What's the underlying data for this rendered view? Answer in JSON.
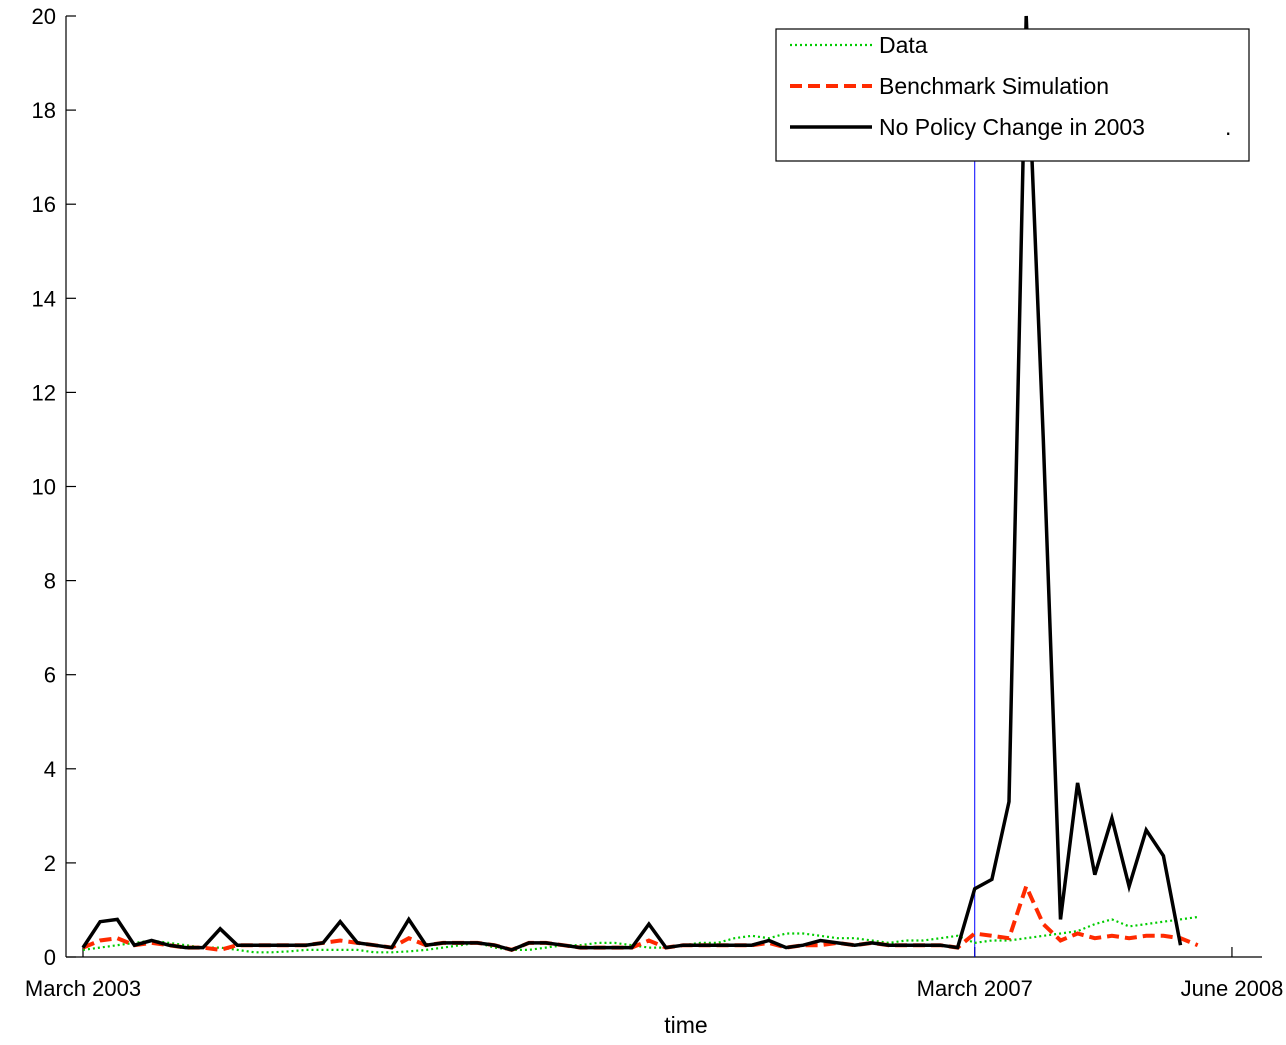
{
  "chart_data": {
    "type": "line",
    "title": "",
    "xlabel": "time",
    "ylabel": "",
    "ylim": [
      0,
      20
    ],
    "yticks": [
      0,
      2,
      4,
      6,
      8,
      10,
      12,
      14,
      16,
      18,
      20
    ],
    "xlim": [
      0,
      68
    ],
    "xticks": [
      {
        "x": 0,
        "label": "March 2003"
      },
      {
        "x": 52,
        "label": "March 2007"
      },
      {
        "x": 67,
        "label": "June 2008"
      }
    ],
    "vertical_line": {
      "x": 52,
      "color": "#0000ff"
    },
    "grid": false,
    "legend": {
      "placement": "top-right",
      "trailing_mark": "."
    },
    "series": [
      {
        "name": "Data",
        "color": "#00cc00",
        "style": "dotted",
        "values": [
          0.15,
          0.2,
          0.25,
          0.3,
          0.35,
          0.3,
          0.25,
          0.2,
          0.2,
          0.15,
          0.1,
          0.1,
          0.12,
          0.15,
          0.15,
          0.15,
          0.15,
          0.1,
          0.1,
          0.12,
          0.15,
          0.2,
          0.25,
          0.3,
          0.2,
          0.15,
          0.15,
          0.2,
          0.25,
          0.25,
          0.3,
          0.3,
          0.25,
          0.2,
          0.2,
          0.25,
          0.3,
          0.3,
          0.4,
          0.45,
          0.4,
          0.5,
          0.5,
          0.45,
          0.4,
          0.4,
          0.35,
          0.3,
          0.35,
          0.35,
          0.4,
          0.45,
          0.3,
          0.35,
          0.35,
          0.4,
          0.45,
          0.5,
          0.55,
          0.7,
          0.8,
          0.65,
          0.7,
          0.75,
          0.8,
          0.85
        ]
      },
      {
        "name": "Benchmark Simulation",
        "color": "#ff2a00",
        "style": "dashed",
        "values": [
          0.2,
          0.35,
          0.4,
          0.25,
          0.3,
          0.25,
          0.2,
          0.2,
          0.15,
          0.25,
          0.25,
          0.25,
          0.25,
          0.25,
          0.3,
          0.35,
          0.3,
          0.25,
          0.2,
          0.4,
          0.25,
          0.3,
          0.3,
          0.3,
          0.25,
          0.15,
          0.3,
          0.3,
          0.25,
          0.2,
          0.2,
          0.2,
          0.2,
          0.35,
          0.2,
          0.25,
          0.25,
          0.25,
          0.25,
          0.25,
          0.3,
          0.2,
          0.25,
          0.25,
          0.3,
          0.25,
          0.3,
          0.25,
          0.25,
          0.25,
          0.25,
          0.2,
          0.5,
          0.45,
          0.4,
          1.5,
          0.7,
          0.35,
          0.5,
          0.4,
          0.45,
          0.4,
          0.45,
          0.45,
          0.4,
          0.25
        ]
      },
      {
        "name": "No Policy Change in 2003",
        "color": "#000000",
        "style": "solid",
        "values": [
          0.2,
          0.75,
          0.8,
          0.25,
          0.35,
          0.25,
          0.2,
          0.2,
          0.6,
          0.25,
          0.25,
          0.25,
          0.25,
          0.25,
          0.3,
          0.75,
          0.3,
          0.25,
          0.2,
          0.8,
          0.25,
          0.3,
          0.3,
          0.3,
          0.25,
          0.15,
          0.3,
          0.3,
          0.25,
          0.2,
          0.2,
          0.2,
          0.2,
          0.7,
          0.2,
          0.25,
          0.25,
          0.25,
          0.25,
          0.25,
          0.35,
          0.2,
          0.25,
          0.35,
          0.3,
          0.25,
          0.3,
          0.25,
          0.25,
          0.25,
          0.25,
          0.2,
          1.45,
          1.65,
          3.3,
          20.0,
          11.0,
          0.8,
          3.7,
          1.75,
          2.95,
          1.5,
          2.7,
          2.15,
          0.25
        ]
      }
    ]
  }
}
